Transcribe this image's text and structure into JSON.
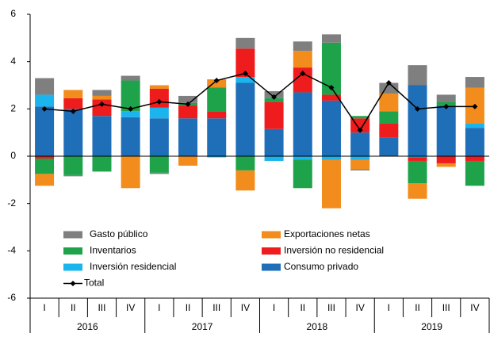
{
  "chart_data": {
    "type": "stacked_bar",
    "categories": [
      "I",
      "II",
      "III",
      "IV",
      "I",
      "II",
      "III",
      "IV",
      "I",
      "II",
      "III",
      "IV",
      "I",
      "II",
      "III",
      "IV"
    ],
    "years": [
      "2016",
      "2017",
      "2018",
      "2019"
    ],
    "ylim": [
      -6,
      6
    ],
    "yticks": [
      -6,
      -4,
      -2,
      0,
      2,
      4,
      6
    ],
    "grid": false,
    "series": [
      {
        "name": "Gasto público",
        "color": "#7f7f7f",
        "values": [
          0.7,
          -0.05,
          0.25,
          0.2,
          -0.05,
          0.3,
          0,
          0.45,
          0.3,
          0.4,
          0.35,
          -0.05,
          0.45,
          0.85,
          0.3,
          0.45
        ]
      },
      {
        "name": "Exportaciones netas",
        "color": "#f28c1c",
        "values": [
          -0.5,
          0.35,
          0.15,
          -1.35,
          0.15,
          -0.4,
          0.35,
          -0.85,
          0,
          0.7,
          -2.05,
          -0.4,
          0.75,
          -0.65,
          -0.15,
          1.5
        ]
      },
      {
        "name": "Inventarios",
        "color": "#1ea34b",
        "values": [
          -0.65,
          -0.8,
          -0.65,
          1.3,
          -0.7,
          0.1,
          1.0,
          -0.6,
          0.15,
          -1.2,
          2.2,
          0.1,
          0.5,
          -0.95,
          0.15,
          -1.05
        ]
      },
      {
        "name": "Inversión no residencial",
        "color": "#ee1c1c",
        "values": [
          -0.1,
          0.45,
          0.7,
          0,
          0.8,
          0.55,
          0.3,
          1.2,
          1.15,
          1.05,
          0.25,
          0.6,
          0.6,
          -0.15,
          -0.3,
          -0.2
        ]
      },
      {
        "name": "Inversión residencial",
        "color": "#1cb4ec",
        "values": [
          0.5,
          0,
          0,
          0.25,
          0.45,
          0,
          -0.05,
          0.25,
          -0.2,
          -0.15,
          -0.15,
          -0.15,
          0,
          -0.05,
          0,
          0.2
        ]
      },
      {
        "name": "Consumo privado",
        "color": "#1f6eb8",
        "values": [
          2.1,
          2.0,
          1.7,
          1.65,
          1.6,
          1.6,
          1.6,
          3.1,
          1.15,
          2.7,
          2.35,
          1.0,
          0.8,
          3.0,
          2.15,
          1.2
        ]
      }
    ],
    "line_series": {
      "name": "Total",
      "color": "#000000",
      "values": [
        2.0,
        1.9,
        2.2,
        2.0,
        2.3,
        2.2,
        3.2,
        3.5,
        2.5,
        3.5,
        2.9,
        1.1,
        3.1,
        2.0,
        2.1,
        2.1
      ]
    }
  }
}
